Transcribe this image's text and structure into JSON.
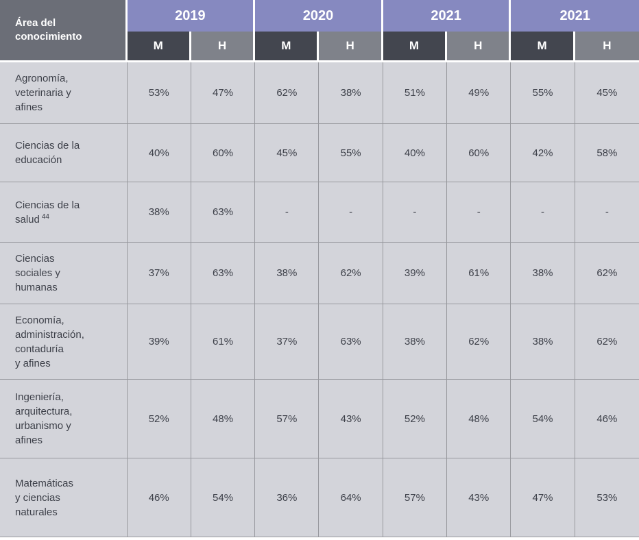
{
  "table": {
    "corner_header": "Área del\nconocimiento",
    "year_groups": [
      "2019",
      "2020",
      "2021",
      "2021"
    ],
    "sub_headers": [
      "M",
      "H",
      "M",
      "H",
      "M",
      "H",
      "M",
      "H"
    ],
    "rows": [
      {
        "area": "Agronomía,\nveterinaria y\nafines",
        "values": [
          "53%",
          "47%",
          "62%",
          "38%",
          "51%",
          "49%",
          "55%",
          "45%"
        ]
      },
      {
        "area": "Ciencias de la\neducación",
        "values": [
          "40%",
          "60%",
          "45%",
          "55%",
          "40%",
          "60%",
          "42%",
          "58%"
        ]
      },
      {
        "area": "Ciencias de la\nsalud",
        "area_sup": "44",
        "values": [
          "38%",
          "63%",
          "-",
          "-",
          "-",
          "-",
          "-",
          "-"
        ]
      },
      {
        "area": "Ciencias\nsociales y\nhumanas",
        "values": [
          "37%",
          "63%",
          "38%",
          "62%",
          "39%",
          "61%",
          "38%",
          "62%"
        ]
      },
      {
        "area": "Economía,\nadministración,\ncontaduría\ny afines",
        "values": [
          "39%",
          "61%",
          "37%",
          "63%",
          "38%",
          "62%",
          "38%",
          "62%"
        ]
      },
      {
        "area": "Ingeniería,\narquitectura,\nurbanismo y\nafines",
        "values": [
          "52%",
          "48%",
          "57%",
          "43%",
          "52%",
          "48%",
          "54%",
          "46%"
        ]
      },
      {
        "area": "Matemáticas\ny ciencias\nnaturales",
        "values": [
          "46%",
          "54%",
          "36%",
          "64%",
          "57%",
          "43%",
          "47%",
          "53%"
        ]
      }
    ]
  },
  "colors": {
    "year_band": "#8689c0",
    "m_header": "#43464f",
    "h_header": "#7f828a",
    "corner_header": "#6b6e77",
    "body_cell": "#d3d4da",
    "gridline": "#97989d",
    "body_text": "#3d4049",
    "header_text": "#ffffff"
  },
  "chart_data": {
    "type": "table",
    "title": "",
    "column_groups": [
      "2019",
      "2020",
      "2021",
      "2021"
    ],
    "columns": [
      "Área del conocimiento",
      "2019 M",
      "2019 H",
      "2020 M",
      "2020 H",
      "2021 M",
      "2021 H",
      "2021 M",
      "2021 H"
    ],
    "rows": [
      [
        "Agronomía, veterinaria y afines",
        "53%",
        "47%",
        "62%",
        "38%",
        "51%",
        "49%",
        "55%",
        "45%"
      ],
      [
        "Ciencias de la educación",
        "40%",
        "60%",
        "45%",
        "55%",
        "40%",
        "60%",
        "42%",
        "58%"
      ],
      [
        "Ciencias de la salud 44",
        "38%",
        "63%",
        "-",
        "-",
        "-",
        "-",
        "-",
        "-"
      ],
      [
        "Ciencias sociales y humanas",
        "37%",
        "63%",
        "38%",
        "62%",
        "39%",
        "61%",
        "38%",
        "62%"
      ],
      [
        "Economía, administración, contaduría y afines",
        "39%",
        "61%",
        "37%",
        "63%",
        "38%",
        "62%",
        "38%",
        "62%"
      ],
      [
        "Ingeniería, arquitectura, urbanismo y afines",
        "52%",
        "48%",
        "57%",
        "43%",
        "52%",
        "48%",
        "54%",
        "46%"
      ],
      [
        "Matemáticas y ciencias naturales",
        "46%",
        "54%",
        "36%",
        "64%",
        "57%",
        "43%",
        "47%",
        "53%"
      ]
    ]
  }
}
